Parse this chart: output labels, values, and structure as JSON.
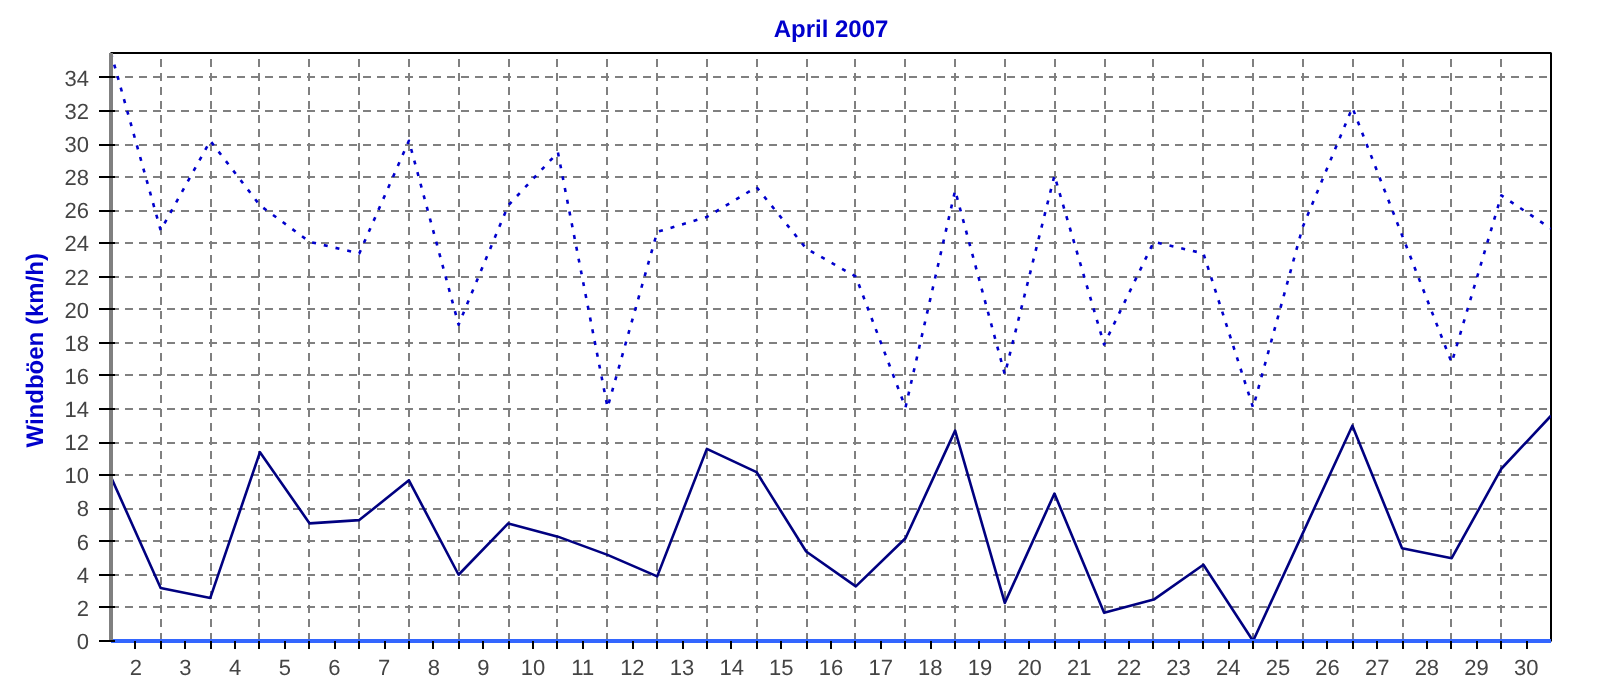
{
  "chart_data": {
    "type": "line",
    "title": "April 2007",
    "ylabel": "Windböen  (km/h)",
    "x": [
      1.5,
      2.5,
      3.5,
      4.5,
      5.5,
      6.5,
      7.5,
      8.5,
      9.5,
      10.5,
      11.5,
      12.5,
      13.5,
      14.5,
      15.5,
      16.5,
      17.5,
      18.5,
      19.5,
      20.5,
      21.5,
      22.5,
      23.5,
      24.5,
      25.5,
      26.5,
      27.5,
      28.5,
      29.5,
      30.5
    ],
    "series": [
      {
        "color": "#0000cc",
        "line_style": "dotted",
        "values": [
          35.5,
          24.8,
          30.2,
          26.3,
          24.1,
          23.4,
          30.2,
          19.1,
          26.3,
          29.5,
          14.1,
          24.7,
          25.6,
          27.4,
          23.7,
          22.0,
          14.1,
          27.2,
          16.1,
          28.1,
          17.9,
          24.1,
          23.4,
          14.1,
          25.0,
          32.2,
          24.5,
          16.8,
          26.9,
          24.9
        ]
      },
      {
        "color": "#000080",
        "line_style": "solid",
        "values": [
          9.9,
          3.2,
          2.6,
          11.4,
          7.1,
          7.3,
          9.7,
          4.0,
          7.1,
          6.3,
          5.2,
          3.9,
          11.6,
          10.2,
          5.4,
          3.3,
          6.2,
          12.7,
          2.3,
          8.9,
          1.7,
          2.5,
          4.6,
          0,
          6.5,
          13.0,
          5.6,
          5.0,
          10.4,
          13.6
        ]
      }
    ],
    "xlim": [
      1.5,
      30.5
    ],
    "ylim": [
      0,
      35.5
    ],
    "xticks": [
      2,
      3,
      4,
      5,
      6,
      7,
      8,
      9,
      10,
      11,
      12,
      13,
      14,
      15,
      16,
      17,
      18,
      19,
      20,
      21,
      22,
      23,
      24,
      25,
      26,
      27,
      28,
      29,
      30,
      {
        "value": 2.5,
        "label": null
      },
      {
        "value": 3.5,
        "label": null
      },
      {
        "value": 4.5,
        "label": null
      },
      {
        "value": 5.5,
        "label": null
      },
      {
        "value": 6.5,
        "label": null
      },
      {
        "value": 7.5,
        "label": null
      },
      {
        "value": 8.5,
        "label": null
      },
      {
        "value": 9.5,
        "label": null
      },
      {
        "value": 10.5,
        "label": null
      },
      {
        "value": 11.5,
        "label": null
      },
      {
        "value": 12.5,
        "label": null
      },
      {
        "value": 13.5,
        "label": null
      },
      {
        "value": 14.5,
        "label": null
      },
      {
        "value": 15.5,
        "label": null
      },
      {
        "value": 16.5,
        "label": null
      },
      {
        "value": 17.5,
        "label": null
      },
      {
        "value": 18.5,
        "label": null
      },
      {
        "value": 19.5,
        "label": null
      },
      {
        "value": 20.5,
        "label": null
      },
      {
        "value": 21.5,
        "label": null
      },
      {
        "value": 22.5,
        "label": null
      },
      {
        "value": 23.5,
        "label": null
      },
      {
        "value": 24.5,
        "label": null
      },
      {
        "value": 25.5,
        "label": null
      },
      {
        "value": 26.5,
        "label": null
      },
      {
        "value": 27.5,
        "label": null
      },
      {
        "value": 28.5,
        "label": null
      },
      {
        "value": 29.5,
        "label": null
      }
    ],
    "yticks": [
      0,
      2,
      4,
      6,
      8,
      10,
      12,
      14,
      16,
      18,
      20,
      22,
      24,
      26,
      28,
      30,
      32,
      34
    ],
    "grid": true,
    "marker": "none"
  }
}
